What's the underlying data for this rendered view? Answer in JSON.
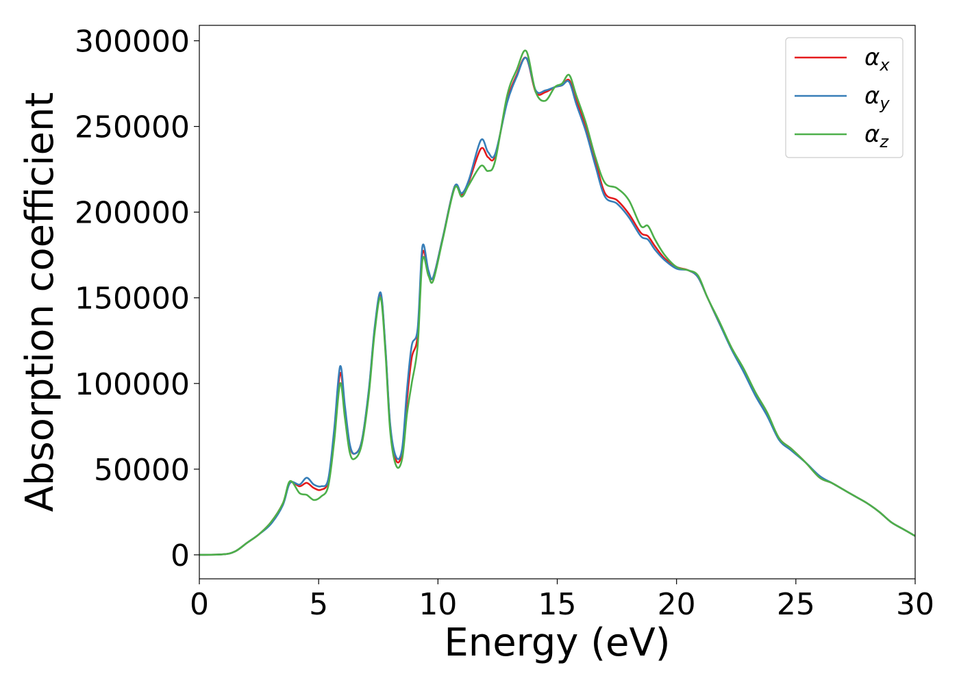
{
  "chart_data": {
    "type": "line",
    "xlabel": "Energy (eV)",
    "ylabel": "Absorption coefficient",
    "xlim": [
      0,
      30
    ],
    "ylim": [
      -14000,
      309000
    ],
    "xticks": [
      0,
      5,
      10,
      15,
      20,
      25,
      30
    ],
    "xtick_labels": [
      "0",
      "5",
      "10",
      "15",
      "20",
      "25",
      "30"
    ],
    "yticks": [
      0,
      50000,
      100000,
      150000,
      200000,
      250000,
      300000
    ],
    "ytick_labels": [
      "0",
      "50000",
      "100000",
      "150000",
      "200000",
      "250000",
      "300000"
    ],
    "grid": false,
    "legend_position": "top-right",
    "series": [
      {
        "name": "α",
        "subscript": "x",
        "color": "#e41a1c",
        "x": [
          0,
          1,
          1.5,
          2,
          2.5,
          3,
          3.5,
          3.8,
          4.2,
          4.5,
          4.8,
          5.1,
          5.4,
          5.65,
          5.9,
          6.1,
          6.3,
          6.5,
          6.8,
          7.1,
          7.35,
          7.6,
          7.8,
          8,
          8.25,
          8.5,
          8.7,
          8.9,
          9.15,
          9.35,
          9.6,
          9.8,
          10.2,
          10.7,
          11,
          11.3,
          11.8,
          12.1,
          12.4,
          12.9,
          13.3,
          13.7,
          14.1,
          14.5,
          14.9,
          15.2,
          15.5,
          15.8,
          16.2,
          16.6,
          17,
          17.5,
          18,
          18.5,
          18.8,
          19.1,
          19.5,
          20,
          20.5,
          20.9,
          21.3,
          21.8,
          22.3,
          22.8,
          23.3,
          23.8,
          24.3,
          24.8,
          25.4,
          26,
          26.5,
          27,
          27.5,
          28,
          28.5,
          29,
          29.5,
          30
        ],
        "values": [
          0,
          300,
          2000,
          7000,
          12000,
          19000,
          30000,
          42000,
          40000,
          42000,
          39000,
          38000,
          43000,
          70000,
          106000,
          85000,
          64000,
          59000,
          66000,
          95000,
          132000,
          152000,
          120000,
          75000,
          55000,
          60000,
          90000,
          115000,
          128000,
          176000,
          165000,
          162000,
          185000,
          215000,
          210000,
          218000,
          237000,
          232000,
          233000,
          265000,
          280000,
          290000,
          270000,
          270000,
          273000,
          274000,
          277000,
          265000,
          250000,
          230000,
          211000,
          207000,
          199000,
          188000,
          186000,
          180000,
          173000,
          168000,
          166000,
          162000,
          150000,
          135000,
          121000,
          108000,
          94000,
          82000,
          68000,
          62000,
          54000,
          45000,
          42000,
          38000,
          34000,
          30000,
          25000,
          19000,
          15000,
          11000
        ]
      },
      {
        "name": "α",
        "subscript": "y",
        "color": "#377eb8",
        "x": [
          0,
          1,
          1.5,
          2,
          2.5,
          3,
          3.5,
          3.8,
          4.2,
          4.5,
          4.8,
          5.1,
          5.4,
          5.65,
          5.9,
          6.1,
          6.3,
          6.5,
          6.8,
          7.1,
          7.35,
          7.6,
          7.8,
          8,
          8.25,
          8.5,
          8.7,
          8.9,
          9.15,
          9.35,
          9.6,
          9.8,
          10.2,
          10.7,
          11,
          11.3,
          11.8,
          12.1,
          12.4,
          12.9,
          13.3,
          13.7,
          14.1,
          14.5,
          14.9,
          15.2,
          15.5,
          15.8,
          16.2,
          16.6,
          17,
          17.5,
          18,
          18.5,
          18.8,
          19.1,
          19.5,
          20,
          20.5,
          20.9,
          21.3,
          21.8,
          22.3,
          22.8,
          23.3,
          23.8,
          24.3,
          24.8,
          25.4,
          26,
          26.5,
          27,
          27.5,
          28,
          28.5,
          29,
          29.5,
          30
        ],
        "values": [
          0,
          300,
          2000,
          7000,
          12000,
          18000,
          29000,
          42000,
          41000,
          45000,
          41000,
          40000,
          44000,
          73000,
          110000,
          87000,
          65000,
          59000,
          66000,
          96000,
          133000,
          153000,
          121000,
          76000,
          57000,
          62000,
          96000,
          122000,
          132000,
          180000,
          166000,
          162000,
          185000,
          215000,
          211000,
          219000,
          242000,
          235000,
          234000,
          264000,
          279000,
          290000,
          271000,
          271000,
          273000,
          274000,
          276000,
          263000,
          247000,
          227000,
          209000,
          205000,
          197000,
          186000,
          184000,
          178000,
          172000,
          167000,
          166000,
          162000,
          150000,
          135000,
          120000,
          107000,
          93000,
          81000,
          67000,
          61000,
          54000,
          46000,
          42000,
          38000,
          34000,
          30000,
          25000,
          19000,
          15000,
          11000
        ]
      },
      {
        "name": "α",
        "subscript": "z",
        "color": "#4daf4a",
        "x": [
          0,
          1,
          1.5,
          2,
          2.5,
          3,
          3.5,
          3.8,
          4.2,
          4.5,
          4.8,
          5.1,
          5.4,
          5.65,
          5.9,
          6.1,
          6.3,
          6.5,
          6.8,
          7.1,
          7.35,
          7.6,
          7.8,
          8,
          8.25,
          8.5,
          8.7,
          8.9,
          9.15,
          9.35,
          9.6,
          9.8,
          10.2,
          10.7,
          11,
          11.3,
          11.8,
          12.1,
          12.4,
          12.9,
          13.3,
          13.7,
          14.1,
          14.5,
          14.9,
          15.2,
          15.5,
          15.8,
          16.2,
          16.6,
          17,
          17.5,
          18,
          18.5,
          18.8,
          19.1,
          19.5,
          20,
          20.5,
          20.9,
          21.3,
          21.8,
          22.3,
          22.8,
          23.3,
          23.8,
          24.3,
          24.8,
          25.4,
          26,
          26.5,
          27,
          27.5,
          28,
          28.5,
          29,
          29.5,
          30
        ],
        "values": [
          0,
          300,
          2000,
          7000,
          12000,
          19000,
          30000,
          43000,
          36000,
          35000,
          32000,
          34000,
          40000,
          66000,
          100000,
          80000,
          60000,
          56000,
          64000,
          93000,
          130000,
          150000,
          118000,
          72000,
          52000,
          56000,
          82000,
          100000,
          122000,
          172000,
          163000,
          160000,
          184000,
          214000,
          209000,
          216000,
          227000,
          224000,
          230000,
          268000,
          283000,
          294000,
          270000,
          265000,
          273000,
          275000,
          280000,
          268000,
          252000,
          232000,
          217000,
          214000,
          207000,
          192000,
          192000,
          184000,
          175000,
          168000,
          166000,
          163000,
          150000,
          136000,
          121000,
          109000,
          95000,
          83000,
          68000,
          62000,
          54000,
          45000,
          42000,
          38000,
          34000,
          30000,
          25000,
          19000,
          15000,
          11000
        ]
      }
    ]
  }
}
